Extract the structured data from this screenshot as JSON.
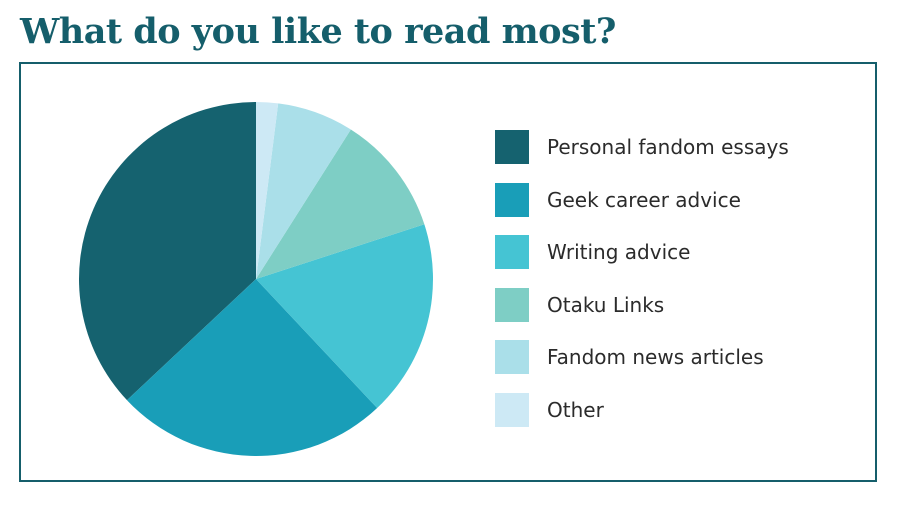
{
  "title": "What do you like to read most?",
  "chart_data": {
    "type": "pie",
    "title": "What do you like to read most?",
    "start_angle_deg": 0,
    "direction": "counterclockwise",
    "legend_position": "right",
    "slices": [
      {
        "label": "Personal fandom essays",
        "value": 37,
        "color": "#15626f"
      },
      {
        "label": "Geek career advice",
        "value": 25,
        "color": "#199eb8"
      },
      {
        "label": "Writing advice",
        "value": 18,
        "color": "#45c4d3"
      },
      {
        "label": "Otaku Links",
        "value": 11,
        "color": "#7ecec5"
      },
      {
        "label": "Fandom news articles",
        "value": 7,
        "color": "#aadfe9"
      },
      {
        "label": "Other",
        "value": 2,
        "color": "#cde9f5"
      }
    ]
  },
  "colors": {
    "title": "#155e6b",
    "border": "#155e6b",
    "legend_text": "#2b2b2b",
    "background": "#ffffff"
  }
}
